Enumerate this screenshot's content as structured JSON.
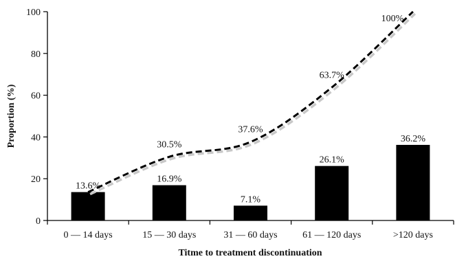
{
  "chart_data": {
    "type": "bar",
    "categories": [
      "0 — 14 days",
      "15 — 30 days",
      "31 — 60 days",
      "61 — 120 days",
      ">120 days"
    ],
    "series": [
      {
        "type": "bar",
        "values": [
          13.6,
          16.9,
          7.1,
          26.1,
          36.2
        ],
        "labels": [
          "13.6%",
          "16.9%",
          "7.1%",
          "26.1%",
          "36.2%"
        ],
        "color": "#000000"
      },
      {
        "type": "line",
        "style": "dashed",
        "values": [
          13.6,
          30.5,
          37.6,
          63.7,
          100
        ],
        "labels": [
          "13.6%",
          "30.5%",
          "37.6%",
          "63.7%",
          "100%"
        ],
        "color": "#000000"
      }
    ],
    "xlabel": "Titme to treatment discontinuation",
    "ylabel": "Proportion  (%)",
    "ylim": [
      0,
      100
    ],
    "yticks": [
      "0",
      "20",
      "40",
      "60",
      "80",
      "100"
    ],
    "grid": false,
    "legend": "none"
  }
}
